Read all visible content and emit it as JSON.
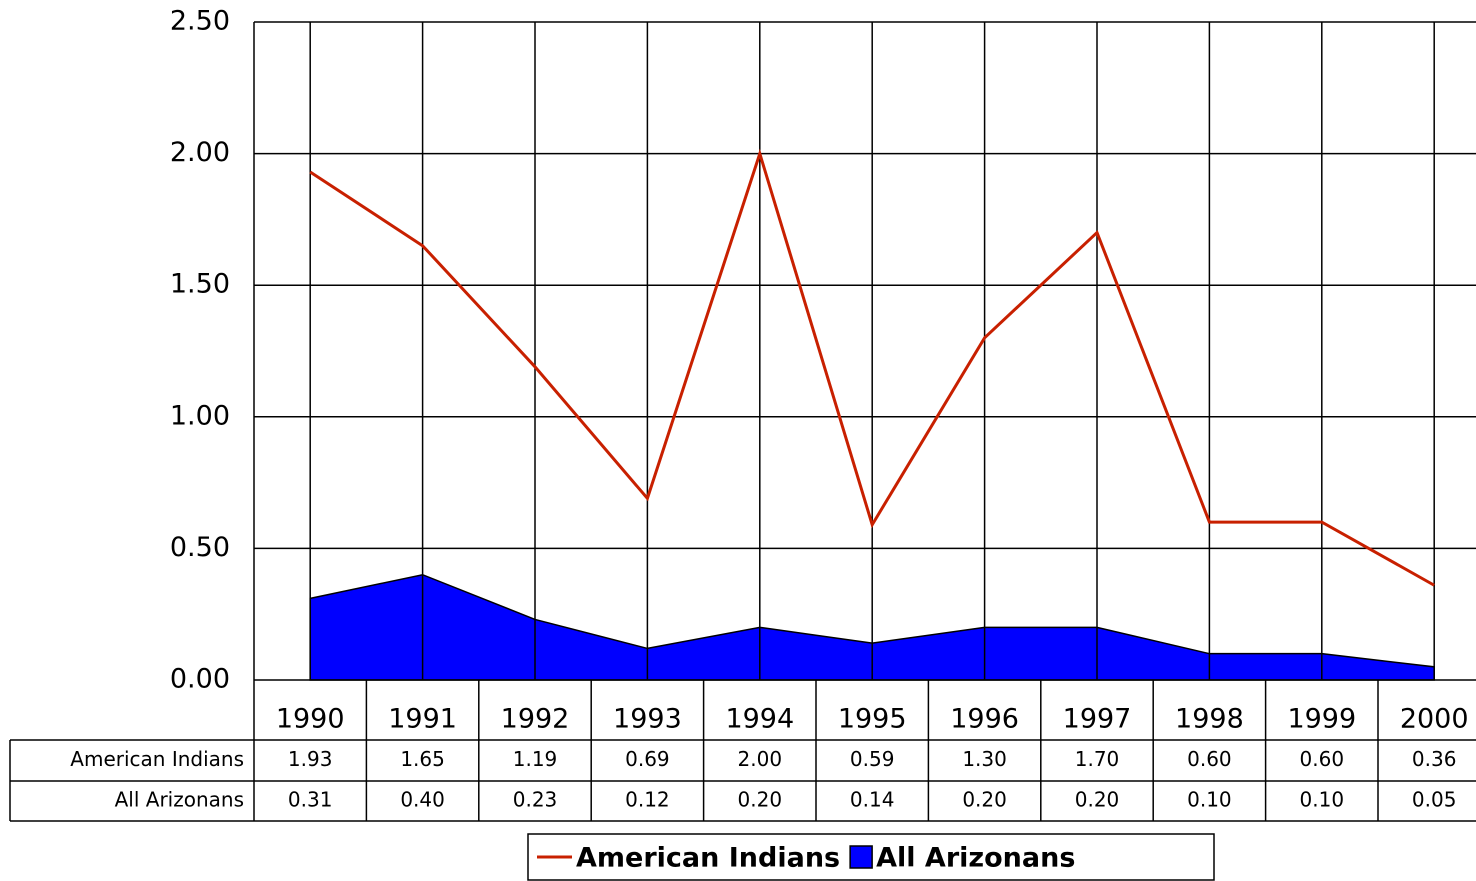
{
  "chart_data": {
    "type": "line-area",
    "categories": [
      "1990",
      "1991",
      "1992",
      "1993",
      "1994",
      "1995",
      "1996",
      "1997",
      "1998",
      "1999",
      "2000"
    ],
    "series": [
      {
        "name": "American Indians",
        "color": "#c82000",
        "kind": "line",
        "values": [
          1.93,
          1.65,
          1.19,
          0.69,
          2.0,
          0.59,
          1.3,
          1.7,
          0.6,
          0.6,
          0.36
        ],
        "value_labels": [
          "1.93",
          "1.65",
          "1.19",
          "0.69",
          "2.00",
          "0.59",
          "1.30",
          "1.70",
          "0.60",
          "0.60",
          "0.36"
        ]
      },
      {
        "name": "All Arizonans",
        "color": "#0000ff",
        "kind": "area",
        "values": [
          0.31,
          0.4,
          0.23,
          0.12,
          0.2,
          0.14,
          0.2,
          0.2,
          0.1,
          0.1,
          0.05
        ],
        "value_labels": [
          "0.31",
          "0.40",
          "0.23",
          "0.12",
          "0.20",
          "0.14",
          "0.20",
          "0.20",
          "0.10",
          "0.10",
          "0.05"
        ]
      }
    ],
    "ylim": [
      0,
      2.5
    ],
    "yticks": [
      {
        "value": 0,
        "label": "0.00"
      },
      {
        "value": 0.5,
        "label": "0.50"
      },
      {
        "value": 1,
        "label": "1.00"
      },
      {
        "value": 1.5,
        "label": "1.50"
      },
      {
        "value": 2,
        "label": "2.00"
      },
      {
        "value": 2.5,
        "label": "2.50"
      }
    ],
    "grid": true,
    "legend": "bottom"
  }
}
